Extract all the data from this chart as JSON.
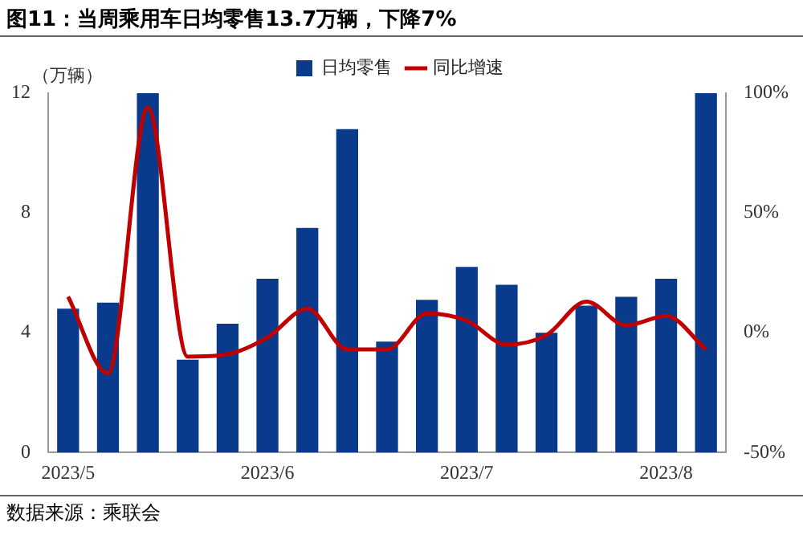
{
  "chart_data": {
    "type": "bar",
    "title": "图11：当周乘用车日均零售13.7万辆，下降7%",
    "ylabel": "（万辆）",
    "categories": [
      "2023/5",
      null,
      null,
      null,
      null,
      "2023/6",
      null,
      null,
      null,
      null,
      "2023/7",
      null,
      null,
      null,
      null,
      "2023/8",
      null
    ],
    "series": [
      {
        "name": "日均零售",
        "color": "#0a3a8c",
        "values": [
          4.8,
          5.0,
          12.0,
          3.1,
          4.3,
          5.8,
          7.5,
          10.8,
          3.7,
          5.1,
          6.2,
          5.6,
          4.0,
          4.9,
          5.2,
          5.8,
          12.0
        ]
      },
      {
        "name": "同比增速",
        "type": "line",
        "axis": "y2",
        "color": "#c00000",
        "values": [
          15,
          -17,
          94,
          -10,
          -9,
          -2,
          10,
          -7,
          -7,
          8,
          5,
          -5,
          -1,
          13,
          3,
          7,
          -7
        ]
      }
    ],
    "ylim": [
      0,
      12
    ],
    "yticks": [
      0,
      4,
      8,
      12
    ],
    "y2lim": [
      -50,
      100
    ],
    "y2ticks": [
      {
        "value": -50,
        "label": "-50%"
      },
      {
        "value": 0,
        "label": "0%"
      },
      {
        "value": 50,
        "label": "50%"
      },
      {
        "value": 100,
        "label": "100%"
      }
    ],
    "grid": false,
    "legend": "top",
    "marker": "none",
    "annotations": [
      "数据来源：乘联会"
    ]
  }
}
